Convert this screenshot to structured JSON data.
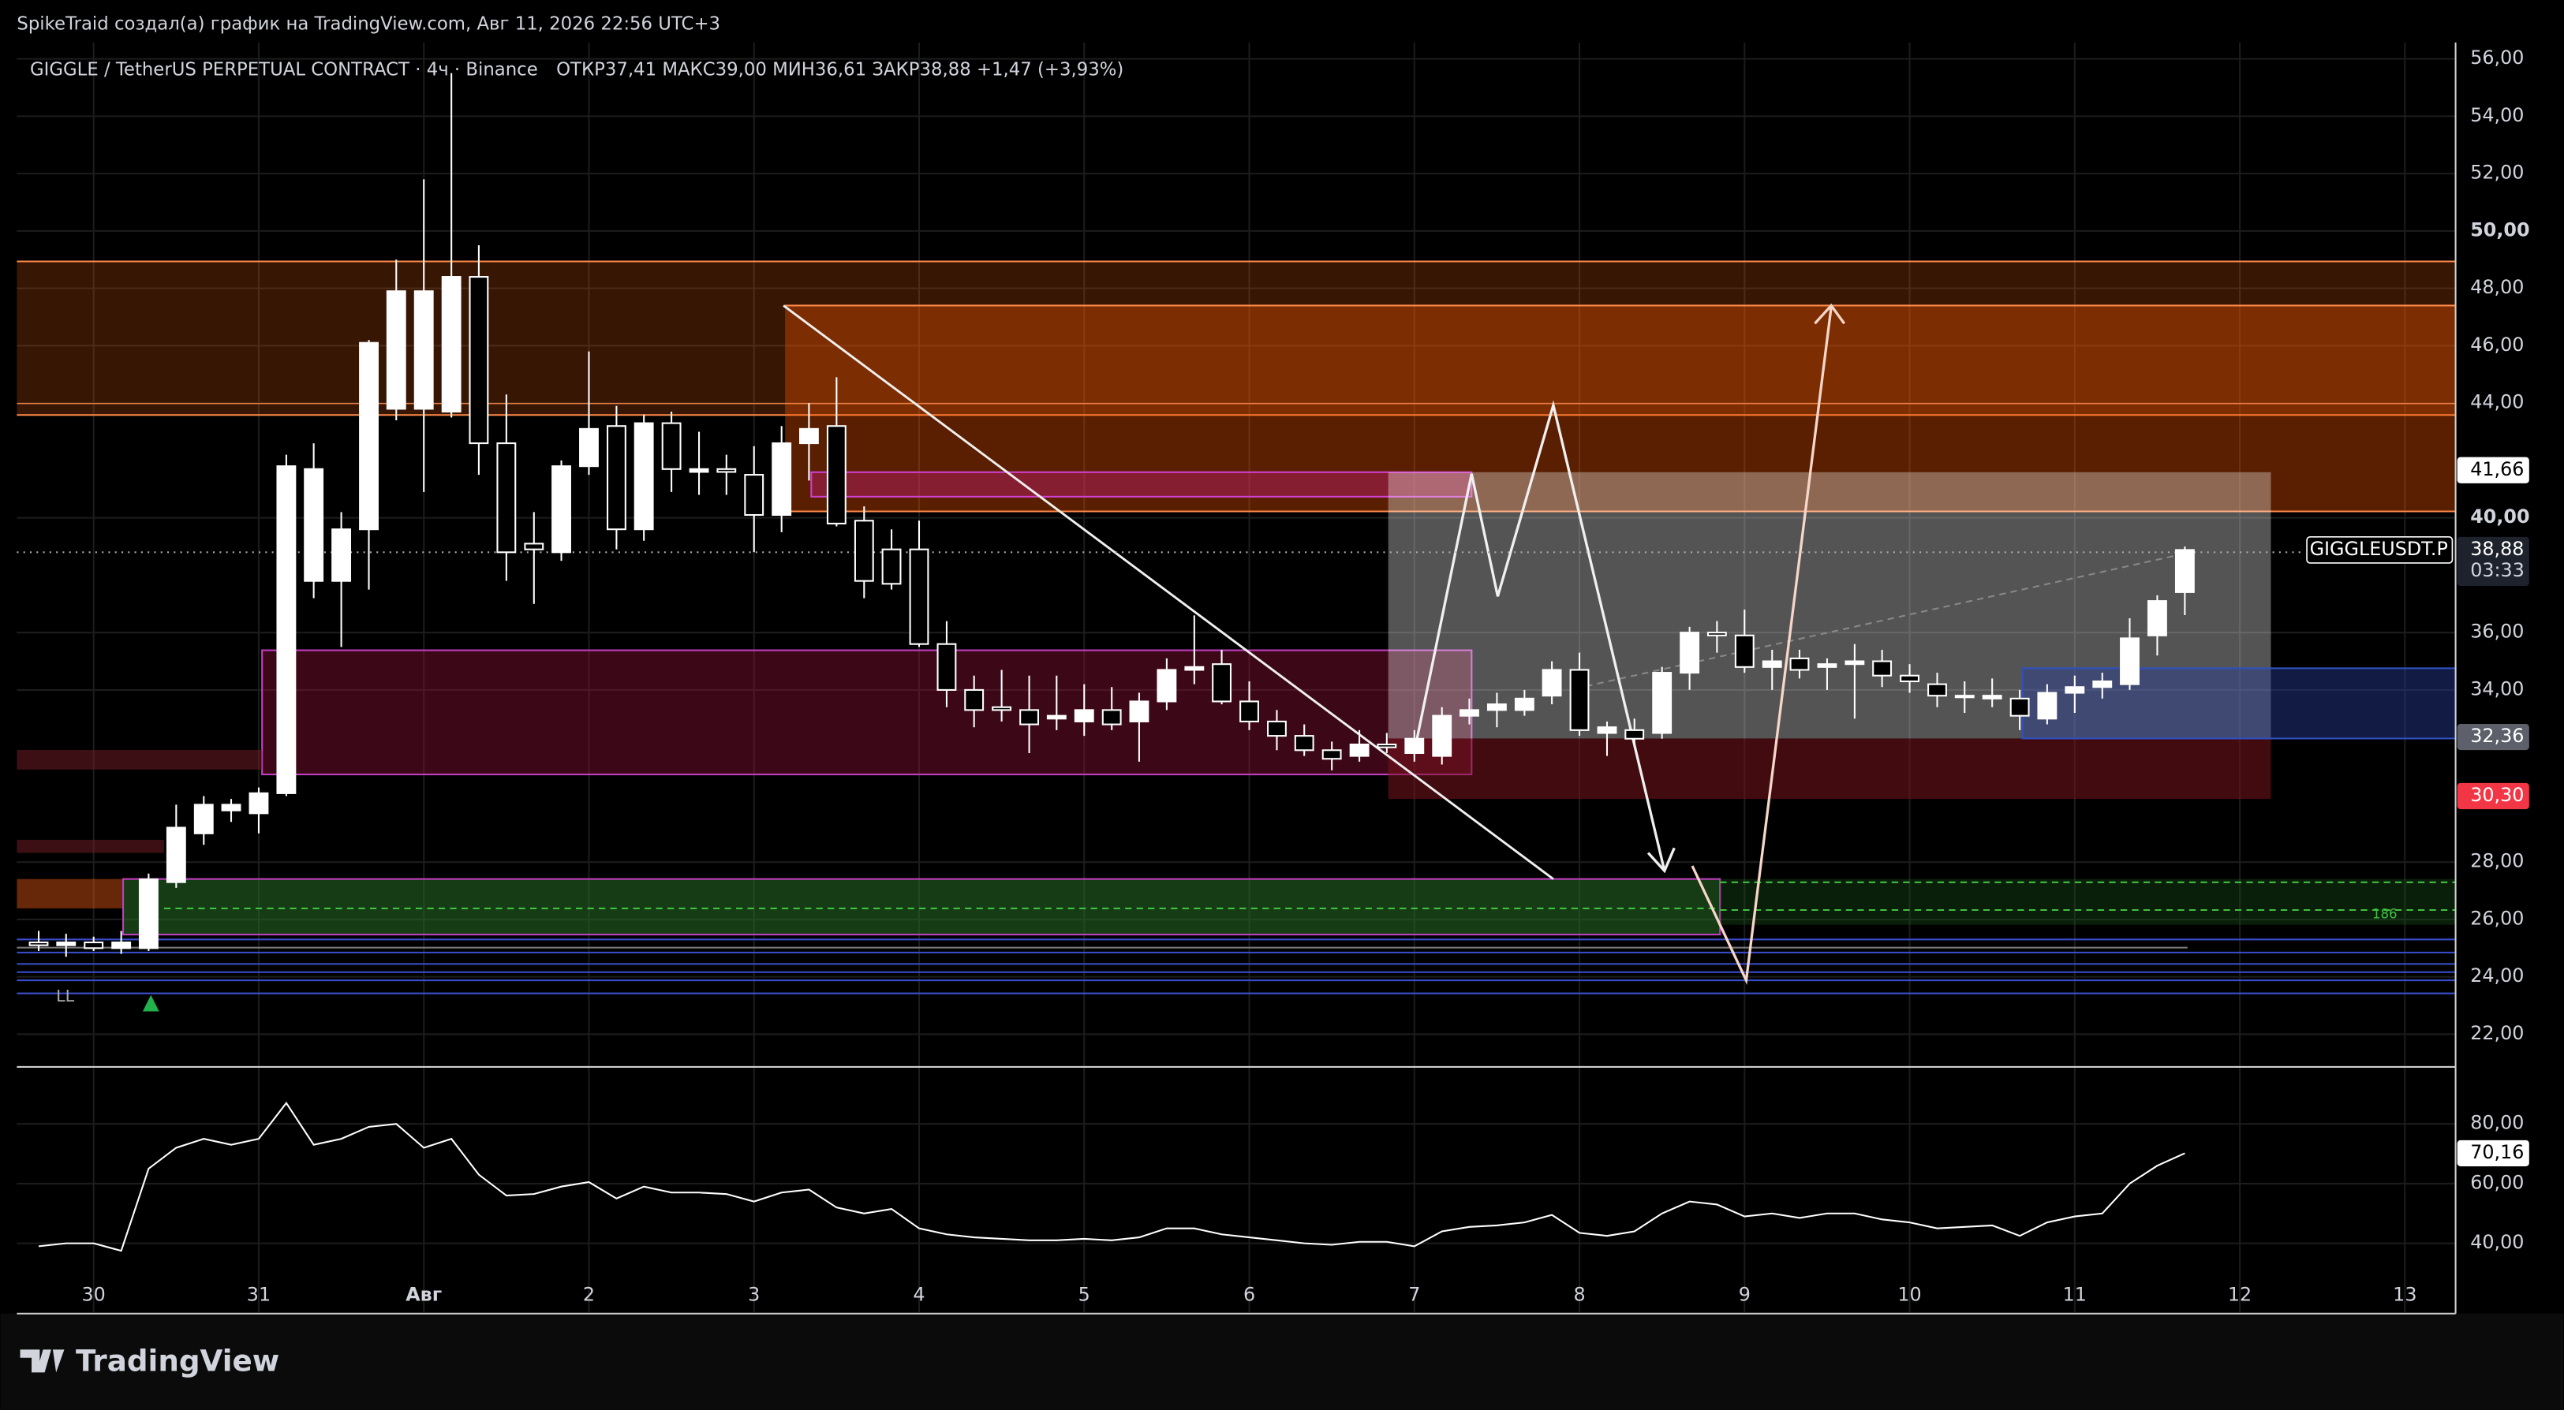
{
  "header": {
    "credit": "SpikeTraid создал(а) график на TradingView.com, Авг 11, 2026 22:56 UTC+3",
    "symbol": "GIGGLE / TetherUS PERPETUAL CONTRACT · 4ч · Binance",
    "ohlc": "ОТКР37,41  МАКС39,00  МИН36,61  ЗАКР38,88  +1,47 (+3,93%)"
  },
  "logo": "TradingView",
  "chart_data": [
    {
      "type": "candlestick",
      "x": [
        -0.333,
        -0.167,
        0,
        0.167,
        0.333,
        0.5,
        0.667,
        0.833,
        1,
        1.167,
        1.333,
        1.5,
        1.667,
        1.833,
        2,
        2.167,
        2.333,
        2.5,
        2.667,
        2.833,
        3,
        3.167,
        3.333,
        3.5,
        3.667,
        3.833,
        4,
        4.167,
        4.333,
        4.5,
        4.667,
        4.833,
        5,
        5.167,
        5.333,
        5.5,
        5.667,
        5.833,
        6,
        6.167,
        6.333,
        6.5,
        6.667,
        6.833,
        7,
        7.167,
        7.333,
        7.5,
        7.667,
        7.833,
        8,
        8.167,
        8.333,
        8.5,
        8.667,
        8.833,
        9,
        9.167,
        9.333,
        9.5,
        9.667,
        9.833,
        10,
        10.167,
        10.333,
        10.5,
        10.667,
        10.833,
        11,
        11.167,
        11.333,
        11.5,
        11.667,
        11.833,
        12,
        12.167,
        12.333,
        12.5,
        12.667
      ],
      "open": [
        25.2,
        25.1,
        25.2,
        25.0,
        25.0,
        27.3,
        29.0,
        29.8,
        29.7,
        30.4,
        37.8,
        37.8,
        39.6,
        43.8,
        43.8,
        43.7,
        48.4,
        42.6,
        39.1,
        38.8,
        41.8,
        43.2,
        39.6,
        43.3,
        41.6,
        41.7,
        41.5,
        40.1,
        42.6,
        43.2,
        39.9,
        38.9,
        38.9,
        35.6,
        34.0,
        33.4,
        33.3,
        33.0,
        32.9,
        33.3,
        32.9,
        33.6,
        34.7,
        34.9,
        33.6,
        32.9,
        32.4,
        31.9,
        31.7,
        32.1,
        31.8,
        31.7,
        33.1,
        33.3,
        33.3,
        33.8,
        34.7,
        32.5,
        32.6,
        32.5,
        34.6,
        36.0,
        35.9,
        34.8,
        35.1,
        34.8,
        34.9,
        35.0,
        34.5,
        34.2,
        33.8,
        33.7,
        33.7,
        33.0,
        33.9,
        34.1,
        34.2,
        35.9,
        37.41
      ],
      "high": [
        25.6,
        25.5,
        25.4,
        25.6,
        27.6,
        30.0,
        30.3,
        30.2,
        30.6,
        42.2,
        42.6,
        40.2,
        46.2,
        49.0,
        51.8,
        55.5,
        49.5,
        44.3,
        40.2,
        42.0,
        45.8,
        43.9,
        43.6,
        43.7,
        43.0,
        42.2,
        42.5,
        43.2,
        44.0,
        44.9,
        40.4,
        39.6,
        39.9,
        36.4,
        34.5,
        34.7,
        34.5,
        34.5,
        34.2,
        34.1,
        33.9,
        35.1,
        36.6,
        35.4,
        34.3,
        33.3,
        32.8,
        32.2,
        32.6,
        32.5,
        32.6,
        33.4,
        33.7,
        33.9,
        34.0,
        35.0,
        35.3,
        32.9,
        33.0,
        34.8,
        36.2,
        36.4,
        36.8,
        35.4,
        35.4,
        35.1,
        35.6,
        35.4,
        34.9,
        34.6,
        34.3,
        34.4,
        34.0,
        34.2,
        34.5,
        34.6,
        36.5,
        37.3,
        39.0
      ],
      "low": [
        24.9,
        24.7,
        24.9,
        24.8,
        24.9,
        27.1,
        28.6,
        29.4,
        29.0,
        30.3,
        37.2,
        35.5,
        37.5,
        43.4,
        40.9,
        43.5,
        41.5,
        37.8,
        37.0,
        38.5,
        41.5,
        38.9,
        39.2,
        40.9,
        40.8,
        40.8,
        38.8,
        39.5,
        41.3,
        39.7,
        37.2,
        37.5,
        35.5,
        33.4,
        32.7,
        32.9,
        31.8,
        32.6,
        32.4,
        32.6,
        31.5,
        33.3,
        34.2,
        33.5,
        32.6,
        31.9,
        31.7,
        31.2,
        31.5,
        31.8,
        31.5,
        31.4,
        32.8,
        32.7,
        33.1,
        33.5,
        32.4,
        31.7,
        32.1,
        32.3,
        34.0,
        35.3,
        34.6,
        34.0,
        34.4,
        34.0,
        33.0,
        34.1,
        33.9,
        33.4,
        33.2,
        33.4,
        32.6,
        32.8,
        33.2,
        33.7,
        34.0,
        35.2,
        36.61
      ],
      "close": [
        25.1,
        25.2,
        25.0,
        25.2,
        27.4,
        29.2,
        30.0,
        30.0,
        30.4,
        41.8,
        41.7,
        39.6,
        46.1,
        47.9,
        47.9,
        48.4,
        42.6,
        38.8,
        38.9,
        41.8,
        43.1,
        39.6,
        43.3,
        41.7,
        41.7,
        41.6,
        40.1,
        42.6,
        43.1,
        39.8,
        37.8,
        37.7,
        35.6,
        34.0,
        33.3,
        33.3,
        32.8,
        33.1,
        33.3,
        32.8,
        33.6,
        34.7,
        34.8,
        33.6,
        32.9,
        32.4,
        31.9,
        31.6,
        32.1,
        32.0,
        32.3,
        33.1,
        33.3,
        33.5,
        33.7,
        34.7,
        32.6,
        32.7,
        32.3,
        34.6,
        36.0,
        35.9,
        34.8,
        35.0,
        34.7,
        34.9,
        35.0,
        34.5,
        34.3,
        33.8,
        33.8,
        33.8,
        33.1,
        33.9,
        34.1,
        34.3,
        35.8,
        37.1,
        38.88
      ],
      "up_color": "#ffffff",
      "down_color": "#000000",
      "grid": true,
      "xlim": [
        -0.465,
        14.307
      ],
      "ylim": [
        20.86,
        56.57
      ],
      "xticks": [
        {
          "value": 0,
          "label": "30"
        },
        {
          "value": 1,
          "label": "31"
        },
        {
          "value": 2,
          "label": "Авг"
        },
        {
          "value": 3,
          "label": "2"
        },
        {
          "value": 4,
          "label": "3"
        },
        {
          "value": 5,
          "label": "4"
        },
        {
          "value": 6,
          "label": "5"
        },
        {
          "value": 7,
          "label": "6"
        },
        {
          "value": 8,
          "label": "7"
        },
        {
          "value": 9,
          "label": "8"
        },
        {
          "value": 10,
          "label": "9"
        },
        {
          "value": 11,
          "label": "10"
        },
        {
          "value": 12,
          "label": "11"
        },
        {
          "value": 13,
          "label": "12"
        },
        {
          "value": 14,
          "label": "13"
        }
      ],
      "yticks": [
        {
          "value": 56,
          "label": "56,00"
        },
        {
          "value": 54,
          "label": "54,00"
        },
        {
          "value": 52,
          "label": "52,00"
        },
        {
          "value": 50,
          "label": "50,00"
        },
        {
          "value": 48,
          "label": "48,00"
        },
        {
          "value": 46,
          "label": "46,00"
        },
        {
          "value": 44,
          "label": "44,00"
        },
        {
          "value": 40,
          "label": "40,00"
        },
        {
          "value": 36,
          "label": "36,00"
        },
        {
          "value": 34,
          "label": "34,00"
        },
        {
          "value": 28,
          "label": "28,00"
        },
        {
          "value": 26,
          "label": "26,00"
        },
        {
          "value": 24,
          "label": "24,00"
        },
        {
          "value": 22,
          "label": "22,00"
        }
      ],
      "price_labels": [
        {
          "value": 41.66,
          "label": "41,66"
        },
        {
          "value": 38.88,
          "label": "38,88"
        },
        {
          "value": 32.36,
          "label": "32,36"
        },
        {
          "value": 30.3,
          "label": "30,30"
        }
      ],
      "symbol_label": "GIGGLEUSDT.P",
      "countdown": "03:33",
      "annotations": [
        "LL",
        "186"
      ]
    },
    {
      "type": "line",
      "color": "#ffffff",
      "values": [
        39,
        40,
        40,
        37.5,
        65,
        72,
        75,
        73,
        75,
        87,
        73,
        75,
        79,
        80,
        72,
        75,
        63,
        56,
        56.5,
        59,
        60.5,
        55,
        59,
        57,
        57,
        56.5,
        54,
        57,
        58,
        52,
        50,
        51.5,
        45,
        43,
        42,
        41.5,
        41,
        41,
        41.5,
        41,
        42,
        45,
        45,
        43,
        42,
        41,
        40,
        39.5,
        40.5,
        40.5,
        39,
        44,
        45.5,
        46,
        47,
        49.5,
        43.5,
        42.5,
        44,
        50,
        54,
        53,
        49,
        50,
        48.5,
        50,
        50,
        48,
        47,
        45,
        45.5,
        46,
        42.5,
        47,
        49,
        50,
        60,
        66,
        70.16
      ],
      "ylim": [
        17,
        98
      ],
      "yticks": [
        {
          "value": 80,
          "label": "80,00"
        },
        {
          "value": 60,
          "label": "60,00"
        },
        {
          "value": 40,
          "label": "40,00"
        }
      ],
      "last_label": {
        "value": 70.16,
        "label": "70,16"
      }
    }
  ]
}
